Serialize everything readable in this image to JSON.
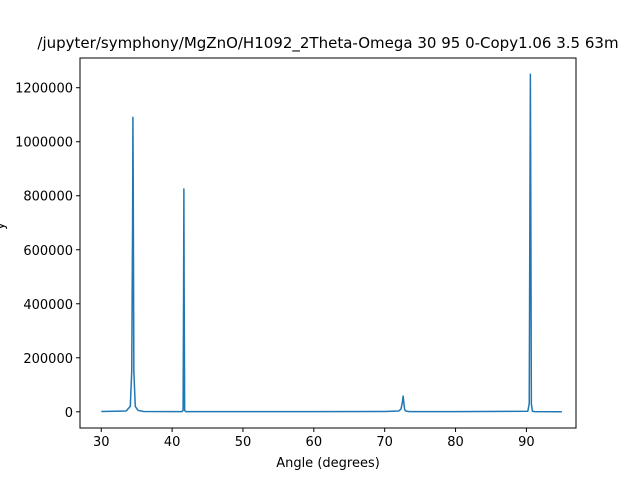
{
  "chart_data": {
    "type": "line",
    "title": "/jupyter/symphony/MgZnO/H1092_2Theta-Omega 30 95 0-Copy1.06 3.5 63m",
    "xlabel": "Angle (degrees)",
    "ylabel": "y",
    "xlim": [
      27,
      97
    ],
    "ylim": [
      -60000,
      1310000
    ],
    "xticks": [
      30,
      40,
      50,
      60,
      70,
      80,
      90
    ],
    "yticks": [
      0,
      200000,
      400000,
      600000,
      800000,
      1000000,
      1200000
    ],
    "xtick_labels": [
      "30",
      "40",
      "50",
      "60",
      "70",
      "80",
      "90"
    ],
    "ytick_labels": [
      "0",
      "200000",
      "400000",
      "600000",
      "800000",
      "1000000",
      "1200000"
    ],
    "grid": false,
    "line_color": "#1f77b4",
    "series": [
      {
        "x": [
          30,
          33.5,
          34.1,
          34.3,
          34.42,
          34.47,
          34.52,
          34.6,
          34.8,
          35.2,
          36,
          41.4,
          41.55,
          41.62,
          41.66,
          41.7,
          41.77,
          41.9,
          50,
          60,
          70,
          72.0,
          72.3,
          72.5,
          72.6,
          72.7,
          72.8,
          72.9,
          73.2,
          73.6,
          80,
          90.2,
          90.4,
          90.5,
          90.56,
          90.62,
          90.7,
          90.85,
          91.2,
          95
        ],
        "y": [
          1000,
          3000,
          20000,
          150000,
          700000,
          1090000,
          800000,
          150000,
          20000,
          5000,
          1000,
          800,
          5000,
          450000,
          825000,
          450000,
          5000,
          800,
          500,
          500,
          1000,
          3000,
          10000,
          35000,
          58000,
          35000,
          12000,
          4000,
          1500,
          800,
          500,
          2000,
          30000,
          800000,
          1250000,
          800000,
          30000,
          2000,
          500,
          200
        ]
      }
    ]
  }
}
